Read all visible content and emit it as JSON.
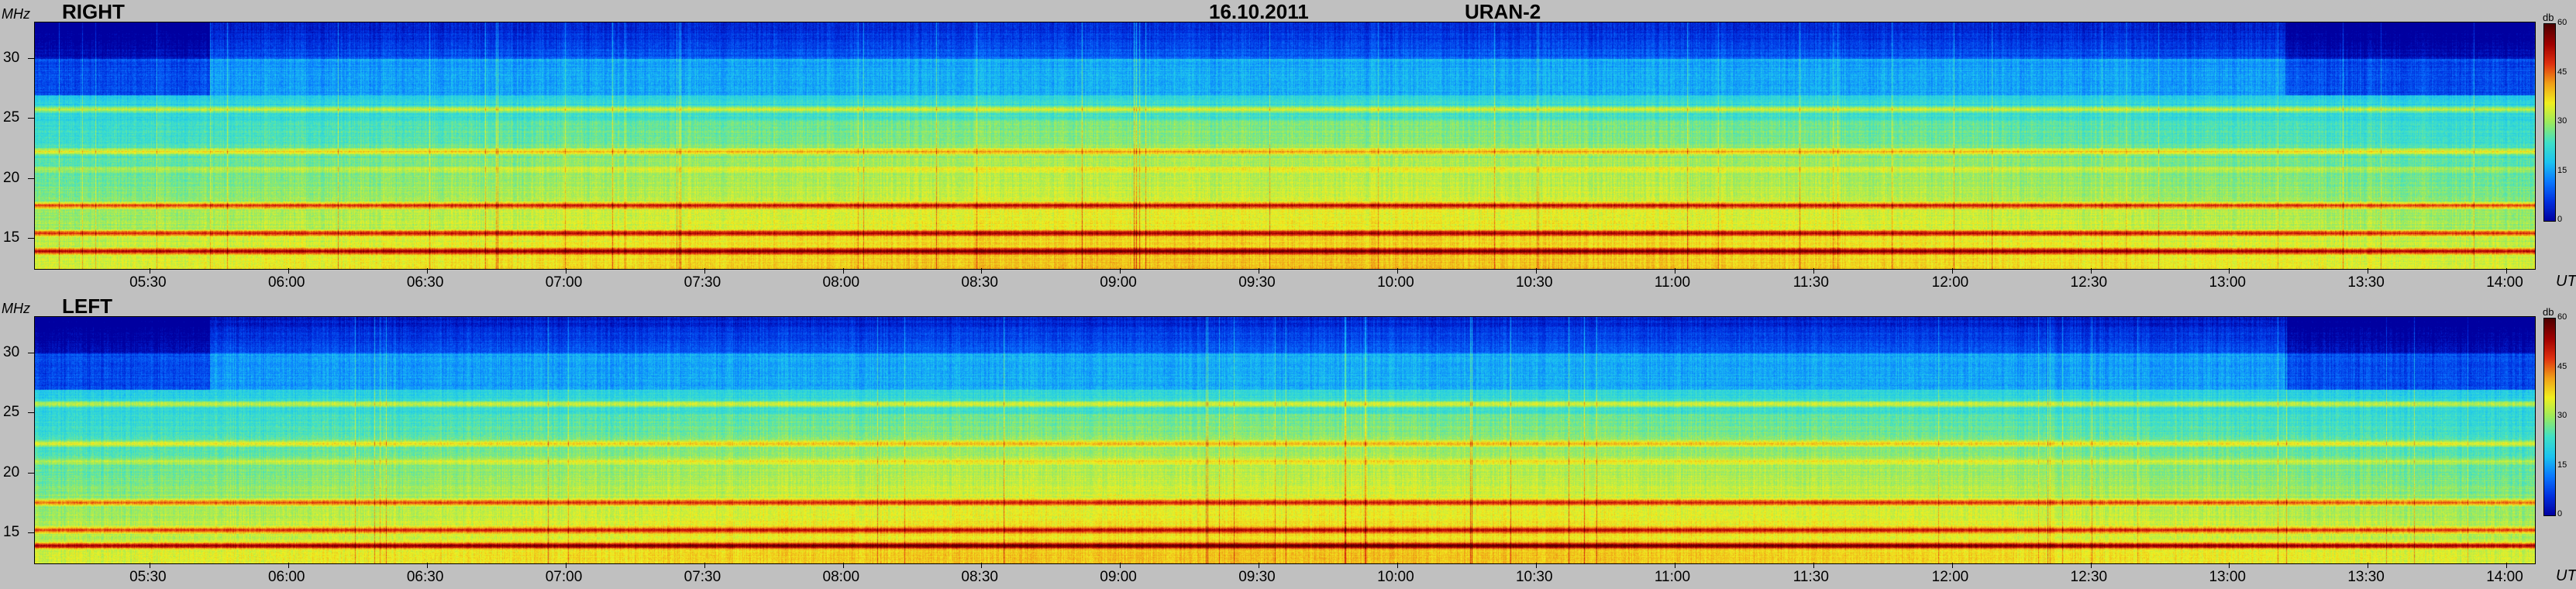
{
  "header": {
    "date": "16.10.2011",
    "instrument": "URAN-2"
  },
  "colors": {
    "background": "#c0c0c0",
    "colormap": [
      "#0000a0",
      "#0030e0",
      "#0a78ff",
      "#1cc4f0",
      "#40e0c8",
      "#9aea60",
      "#f0f020",
      "#f0a018",
      "#e03010",
      "#a00000",
      "#500000"
    ]
  },
  "chart_data": [
    {
      "type": "heatmap",
      "name": "RIGHT",
      "ylabel": "MHz",
      "xlabel": "UT",
      "yticks": [
        15,
        20,
        25,
        30
      ],
      "ylim": [
        12.5,
        33
      ],
      "xticks": [
        "05:30",
        "06:00",
        "06:30",
        "07:00",
        "07:30",
        "08:00",
        "08:30",
        "09:00",
        "09:30",
        "10:00",
        "10:30",
        "11:00",
        "11:30",
        "12:00",
        "12:30",
        "13:00",
        "13:30",
        "14:00"
      ],
      "xlim": [
        "05:05",
        "14:06"
      ],
      "colorbar": {
        "unit": "db",
        "ticks": [
          0,
          15,
          30,
          45,
          60
        ],
        "range": [
          0,
          60
        ]
      },
      "bands": [
        {
          "freq": 14.0,
          "level": 55
        },
        {
          "freq": 15.5,
          "level": 50
        },
        {
          "freq": 17.8,
          "level": 48
        },
        {
          "freq": 20.8,
          "level": 32
        },
        {
          "freq": 22.3,
          "level": 36
        },
        {
          "freq": 25.8,
          "level": 34
        },
        {
          "freq": 28.1,
          "level": 12
        }
      ]
    },
    {
      "type": "heatmap",
      "name": "LEFT",
      "ylabel": "MHz",
      "xlabel": "UT",
      "yticks": [
        15,
        20,
        25,
        30
      ],
      "ylim": [
        12.5,
        33
      ],
      "xticks": [
        "05:30",
        "06:00",
        "06:30",
        "07:00",
        "07:30",
        "08:00",
        "08:30",
        "09:00",
        "09:30",
        "10:00",
        "10:30",
        "11:00",
        "11:30",
        "12:00",
        "12:30",
        "13:00",
        "13:30",
        "14:00"
      ],
      "xlim": [
        "05:05",
        "14:06"
      ],
      "colorbar": {
        "unit": "db",
        "ticks": [
          0,
          15,
          30,
          45,
          60
        ],
        "range": [
          0,
          60
        ]
      },
      "bands": [
        {
          "freq": 14.0,
          "level": 55
        },
        {
          "freq": 15.3,
          "level": 48
        },
        {
          "freq": 17.6,
          "level": 46
        },
        {
          "freq": 21.0,
          "level": 32
        },
        {
          "freq": 22.5,
          "level": 36
        },
        {
          "freq": 25.8,
          "level": 34
        },
        {
          "freq": 28.1,
          "level": 12
        }
      ]
    }
  ]
}
